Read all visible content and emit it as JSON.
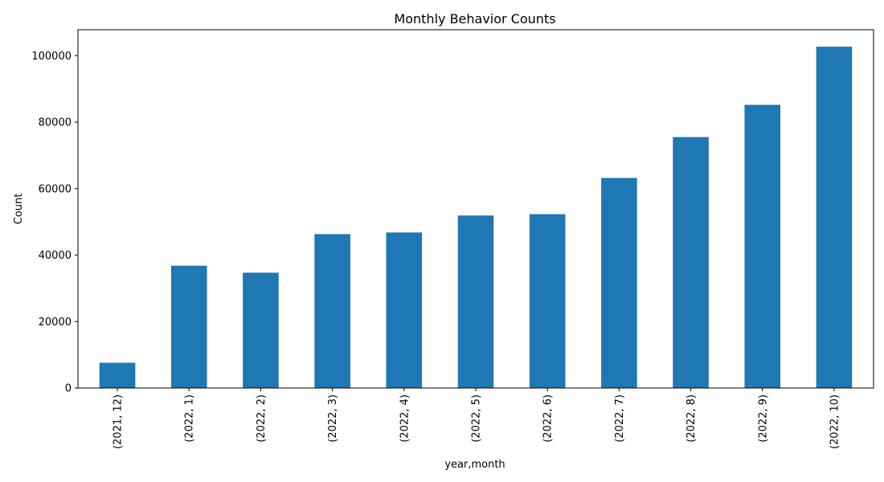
{
  "chart_data": {
    "type": "bar",
    "title": "Monthly Behavior Counts",
    "xlabel": "year,month",
    "ylabel": "Count",
    "categories": [
      "(2021, 12)",
      "(2022, 1)",
      "(2022, 2)",
      "(2022, 3)",
      "(2022, 4)",
      "(2022, 5)",
      "(2022, 6)",
      "(2022, 7)",
      "(2022, 8)",
      "(2022, 9)",
      "(2022, 10)"
    ],
    "values": [
      7600,
      36800,
      34700,
      46300,
      46800,
      51900,
      52300,
      63200,
      75500,
      85200,
      102700
    ],
    "ylim": [
      0,
      107800
    ],
    "yticks": [
      0,
      20000,
      40000,
      60000,
      80000,
      100000
    ],
    "ytick_labels": [
      "0",
      "20000",
      "40000",
      "60000",
      "80000",
      "100000"
    ],
    "bar_color": "#1f77b4",
    "grid": false,
    "legend": false
  }
}
